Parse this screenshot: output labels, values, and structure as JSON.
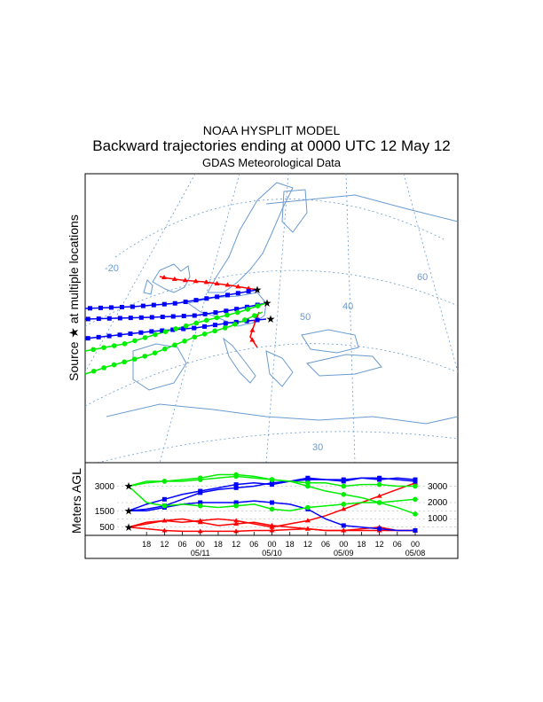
{
  "header": {
    "line1": "NOAA HYSPLIT MODEL",
    "line2": "Backward trajectories ending at 0000 UTC 12 May 12",
    "line3": "GDAS Meteorological Data"
  },
  "side_label": {
    "source_prefix": "Source",
    "source_suffix": "at multiple locations",
    "star_glyph": "★"
  },
  "height_panel": {
    "ylabel": "Meters AGL",
    "left_levels": [
      "3000",
      "1500",
      "500"
    ],
    "right_levels": [
      "3000",
      "2000",
      "1000"
    ],
    "hour_ticks": [
      "18",
      "12",
      "06",
      "00",
      "18",
      "12",
      "06",
      "00",
      "18",
      "12",
      "06",
      "00",
      "18",
      "12",
      "06",
      "00"
    ],
    "date_ticks": [
      "05/11",
      "05/10",
      "05/09",
      "05/08"
    ]
  },
  "map": {
    "grid_labels": [
      "-20",
      "60",
      "50",
      "40",
      "30"
    ],
    "line_color": "#6a9bd1"
  },
  "series_colors": {
    "red": "#ff0000",
    "blue": "#0000ff",
    "green": "#00ee00"
  },
  "chart_data": {
    "type": "line",
    "title": "Backward trajectories ending at 0000 UTC 12 May 12",
    "xlabel": "",
    "ylabel": "Meters AGL",
    "x_hours_before_end": [
      0,
      6,
      12,
      18,
      24,
      30,
      36,
      42,
      48,
      54,
      60,
      66,
      72,
      78,
      84,
      90,
      96
    ],
    "series": [
      {
        "color": "red",
        "start_height": 500,
        "values": [
          500,
          700,
          900,
          1000,
          800,
          600,
          700,
          800,
          600,
          500,
          400,
          300,
          300,
          300,
          300,
          300,
          300
        ]
      },
      {
        "color": "red",
        "start_height": 500,
        "values": [
          500,
          400,
          300,
          250,
          250,
          250,
          250,
          300,
          300,
          350,
          400,
          300,
          300,
          400,
          500,
          300,
          300
        ]
      },
      {
        "color": "red",
        "start_height": 500,
        "values": [
          500,
          800,
          900,
          800,
          900,
          1000,
          900,
          700,
          500,
          700,
          900,
          1200,
          1600,
          2000,
          2400,
          2800,
          3200
        ]
      },
      {
        "color": "blue",
        "start_height": 1500,
        "values": [
          1500,
          1600,
          1800,
          2200,
          2600,
          2800,
          2900,
          3000,
          3200,
          3300,
          3400,
          3400,
          3400,
          3500,
          3500,
          3400,
          3300
        ]
      },
      {
        "color": "blue",
        "start_height": 1500,
        "values": [
          1500,
          1500,
          1700,
          1900,
          2000,
          2000,
          2000,
          2100,
          2000,
          1900,
          1600,
          1000,
          600,
          500,
          400,
          300,
          300
        ]
      },
      {
        "color": "blue",
        "start_height": 1500,
        "values": [
          1500,
          1900,
          2200,
          2500,
          2700,
          2900,
          3100,
          3200,
          3100,
          3300,
          3500,
          3400,
          3300,
          3500,
          3400,
          3500,
          3400
        ]
      },
      {
        "color": "green",
        "start_height": 3000,
        "values": [
          3000,
          3200,
          3300,
          3300,
          3400,
          3500,
          3600,
          3500,
          3400,
          3300,
          3200,
          3200,
          3000,
          3100,
          3100,
          3000,
          3000
        ]
      },
      {
        "color": "green",
        "start_height": 3000,
        "values": [
          3000,
          2000,
          1800,
          1900,
          1800,
          1700,
          1800,
          1900,
          1600,
          1500,
          1700,
          1800,
          1900,
          2000,
          2000,
          2100,
          2200
        ]
      },
      {
        "color": "green",
        "start_height": 3000,
        "values": [
          3000,
          3300,
          3300,
          3400,
          3500,
          3700,
          3700,
          3600,
          3400,
          3300,
          3000,
          2700,
          2500,
          2300,
          2000,
          1700,
          1300
        ]
      }
    ]
  }
}
